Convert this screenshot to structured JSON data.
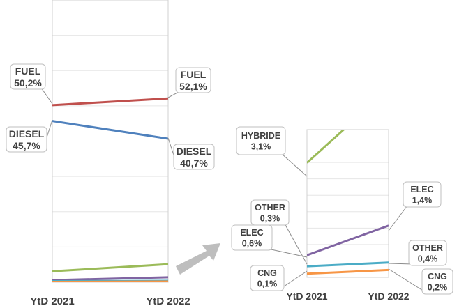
{
  "chart_data": [
    {
      "type": "line",
      "categories": [
        "YtD 2021",
        "YtD 2022"
      ],
      "series": [
        {
          "name": "FUEL",
          "values": [
            50.2,
            52.1
          ],
          "labels": [
            "50,2%",
            "52,1%"
          ],
          "color": "#c0504d"
        },
        {
          "name": "DIESEL",
          "values": [
            45.7,
            40.7
          ],
          "labels": [
            "45,7%",
            "40,7%"
          ],
          "color": "#4f81bd"
        },
        {
          "name": "",
          "values": [
            3.1,
            5.1
          ],
          "labels": [],
          "color": "#9bbb59"
        },
        {
          "name": "",
          "values": [
            0.6,
            1.4
          ],
          "labels": [],
          "color": "#8064a2"
        },
        {
          "name": "",
          "values": [
            0.3,
            0.4
          ],
          "labels": [],
          "color": "#4bacc6"
        },
        {
          "name": "",
          "values": [
            0.1,
            0.2
          ],
          "labels": [],
          "color": "#f79646"
        }
      ],
      "ylim": [
        0,
        80
      ],
      "grid": true,
      "legend": "none"
    },
    {
      "type": "line",
      "categories": [
        "YtD 2021",
        "YtD 2022"
      ],
      "series": [
        {
          "name": "HYBRIDE",
          "values": [
            3.1,
            5.1
          ],
          "labels": [
            "3,1%"
          ],
          "color": "#9bbb59"
        },
        {
          "name": "ELEC",
          "values": [
            0.6,
            1.4
          ],
          "labels": [
            "0,6%",
            "1,4%"
          ],
          "color": "#8064a2"
        },
        {
          "name": "OTHER",
          "values": [
            0.3,
            0.4
          ],
          "labels": [
            "0,3%",
            "0,4%"
          ],
          "color": "#4bacc6"
        },
        {
          "name": "CNG",
          "values": [
            0.1,
            0.2
          ],
          "labels": [
            "0,1%",
            "0,2%"
          ],
          "color": "#f79646"
        }
      ],
      "ylim": [
        0,
        4
      ],
      "grid": true,
      "legend": "none"
    }
  ],
  "colors": {
    "arrow": "#b3b3b3",
    "text": "#404040",
    "grid": "#e6e6e6"
  }
}
